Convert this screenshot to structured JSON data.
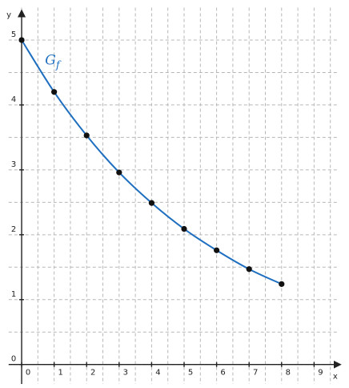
{
  "chart_data": {
    "type": "line",
    "x_label": "x",
    "y_label": "y",
    "annotation": {
      "text": "G",
      "subscript": "f"
    },
    "x": [
      0,
      1,
      2,
      3,
      4,
      5,
      6,
      7,
      8
    ],
    "series": [
      {
        "color": "#1f6fc0",
        "marker_color": "#111111",
        "values": [
          5,
          4.2,
          3.53,
          2.96,
          2.49,
          2.09,
          1.76,
          1.47,
          1.24
        ]
      }
    ],
    "xlim": [
      -0.4,
      9.7
    ],
    "ylim": [
      -0.3,
      5.5
    ],
    "xticks": [
      0,
      1,
      2,
      3,
      4,
      5,
      6,
      7,
      8,
      9
    ],
    "yticks": [
      0,
      1,
      2,
      3,
      4,
      5
    ],
    "grid": true
  }
}
